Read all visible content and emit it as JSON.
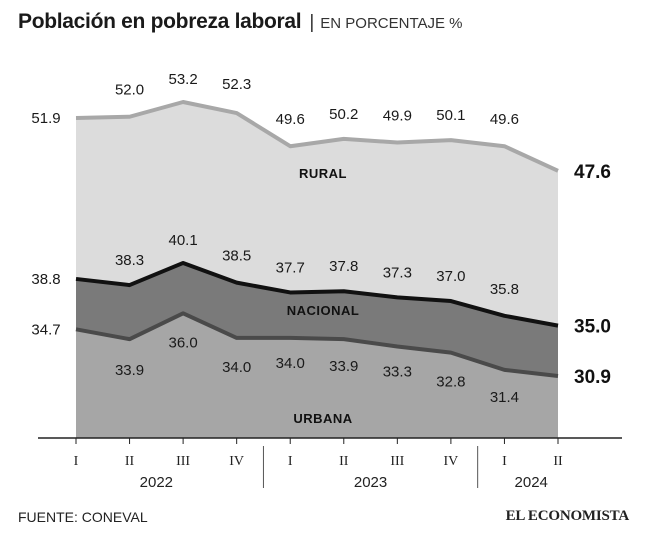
{
  "header": {
    "title": "Población en pobreza laboral",
    "separator": "|",
    "subtitle": "EN PORCENTAJE %"
  },
  "footer": {
    "source": "FUENTE: CONEVAL",
    "brand": "EL ECONOMISTA"
  },
  "colors": {
    "rural_fill": "#dcdcdc",
    "rural_line": "#a8a8a8",
    "nacional_fill": "#7a7a7a",
    "nacional_line": "#111111",
    "urbana_fill": "#a6a6a6",
    "urbana_line": "#4a4a4a"
  },
  "chart_data": {
    "type": "area",
    "title": "Población en pobreza laboral",
    "ylabel": "EN PORCENTAJE %",
    "categories": [
      "I",
      "II",
      "III",
      "IV",
      "I",
      "II",
      "III",
      "IV",
      "I",
      "II"
    ],
    "years": [
      {
        "label": "2022",
        "from": 0,
        "to": 3
      },
      {
        "label": "2023",
        "from": 4,
        "to": 7
      },
      {
        "label": "2024",
        "from": 8,
        "to": 9
      }
    ],
    "series": [
      {
        "name": "RURAL",
        "values": [
          51.9,
          52.0,
          53.2,
          52.3,
          49.6,
          50.2,
          49.9,
          50.1,
          49.6,
          47.6
        ],
        "labels": [
          "51.9",
          "52.0",
          "53.2",
          "52.3",
          "49.6",
          "50.2",
          "49.9",
          "50.1",
          "49.6",
          "47.6"
        ]
      },
      {
        "name": "NACIONAL",
        "values": [
          38.8,
          38.3,
          40.1,
          38.5,
          37.7,
          37.8,
          37.3,
          37.0,
          35.8,
          35.0
        ],
        "labels": [
          "38.8",
          "38.3",
          "40.1",
          "38.5",
          "37.7",
          "37.8",
          "37.3",
          "37.0",
          "35.8",
          "35.0"
        ]
      },
      {
        "name": "URBANA",
        "values": [
          34.7,
          33.9,
          36.0,
          34.0,
          34.0,
          33.9,
          33.3,
          32.8,
          31.4,
          30.9
        ],
        "labels": [
          "34.7",
          "33.9",
          "36.0",
          "34.0",
          "34.0",
          "33.9",
          "33.3",
          "32.8",
          "31.4",
          "30.9"
        ]
      }
    ],
    "grid": false,
    "legend": "inline"
  }
}
